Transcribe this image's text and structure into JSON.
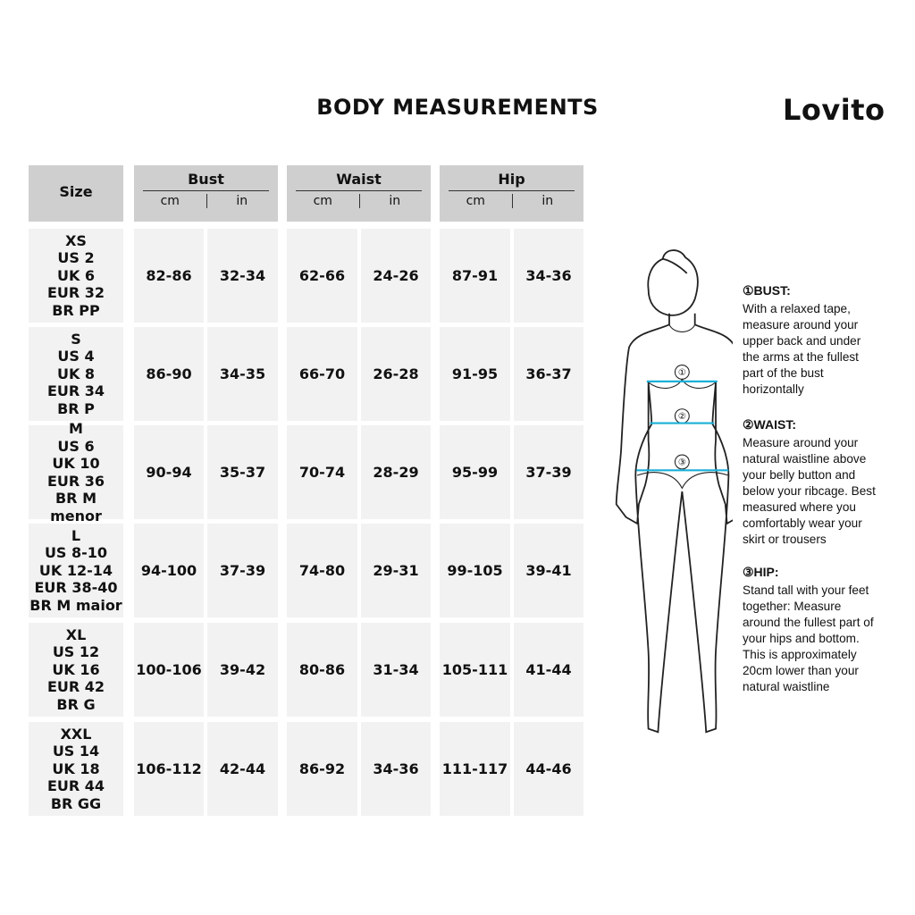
{
  "title": "BODY MEASUREMENTS",
  "brand": "Lovito",
  "table": {
    "size_header": "Size",
    "groups": [
      {
        "label": "Bust",
        "units": [
          "cm",
          "in"
        ]
      },
      {
        "label": "Waist",
        "units": [
          "cm",
          "in"
        ]
      },
      {
        "label": "Hip",
        "units": [
          "cm",
          "in"
        ]
      }
    ],
    "rows": [
      {
        "size": [
          "XS",
          "US 2",
          "UK 6",
          "EUR 32",
          "BR PP"
        ],
        "values": [
          "82-86",
          "32-34",
          "62-66",
          "24-26",
          "87-91",
          "34-36"
        ]
      },
      {
        "size": [
          "S",
          "US 4",
          "UK 8",
          "EUR 34",
          "BR P"
        ],
        "values": [
          "86-90",
          "34-35",
          "66-70",
          "26-28",
          "91-95",
          "36-37"
        ]
      },
      {
        "size": [
          "M",
          "US 6",
          "UK 10",
          "EUR 36",
          "BR M menor"
        ],
        "values": [
          "90-94",
          "35-37",
          "70-74",
          "28-29",
          "95-99",
          "37-39"
        ]
      },
      {
        "size": [
          "L",
          "US 8-10",
          "UK 12-14",
          "EUR 38-40",
          "BR M maior"
        ],
        "values": [
          "94-100",
          "37-39",
          "74-80",
          "29-31",
          "99-105",
          "39-41"
        ]
      },
      {
        "size": [
          "XL",
          "US 12",
          "UK 16",
          "EUR 42",
          "BR G"
        ],
        "values": [
          "100-106",
          "39-42",
          "80-86",
          "31-34",
          "105-111",
          "41-44"
        ]
      },
      {
        "size": [
          "XXL",
          "US 14",
          "UK 18",
          "EUR 44",
          "BR GG"
        ],
        "values": [
          "106-112",
          "42-44",
          "86-92",
          "34-36",
          "111-117",
          "44-46"
        ]
      }
    ]
  },
  "figure": {
    "markers": [
      "①",
      "②",
      "③"
    ],
    "tape_color": "#1ab0d8"
  },
  "instructions": [
    {
      "heading": "①BUST:",
      "lines": [
        "With a relaxed tape,",
        "measure around your",
        "upper back and under",
        "the arms at the fullest",
        "part of the bust",
        "horizontally"
      ]
    },
    {
      "heading": "②WAIST:",
      "lines": [
        "Measure around your",
        "natural waistline above",
        "your belly button and",
        "below your ribcage. Best",
        "measured where you",
        "comfortably wear your",
        "skirt or trousers"
      ]
    },
    {
      "heading": "③HIP:",
      "lines": [
        "Stand tall with your feet",
        "together: Measure",
        "around the fullest part of",
        "your hips and bottom.",
        "This is approximately",
        "20cm lower than your",
        "natural waistline"
      ]
    }
  ]
}
